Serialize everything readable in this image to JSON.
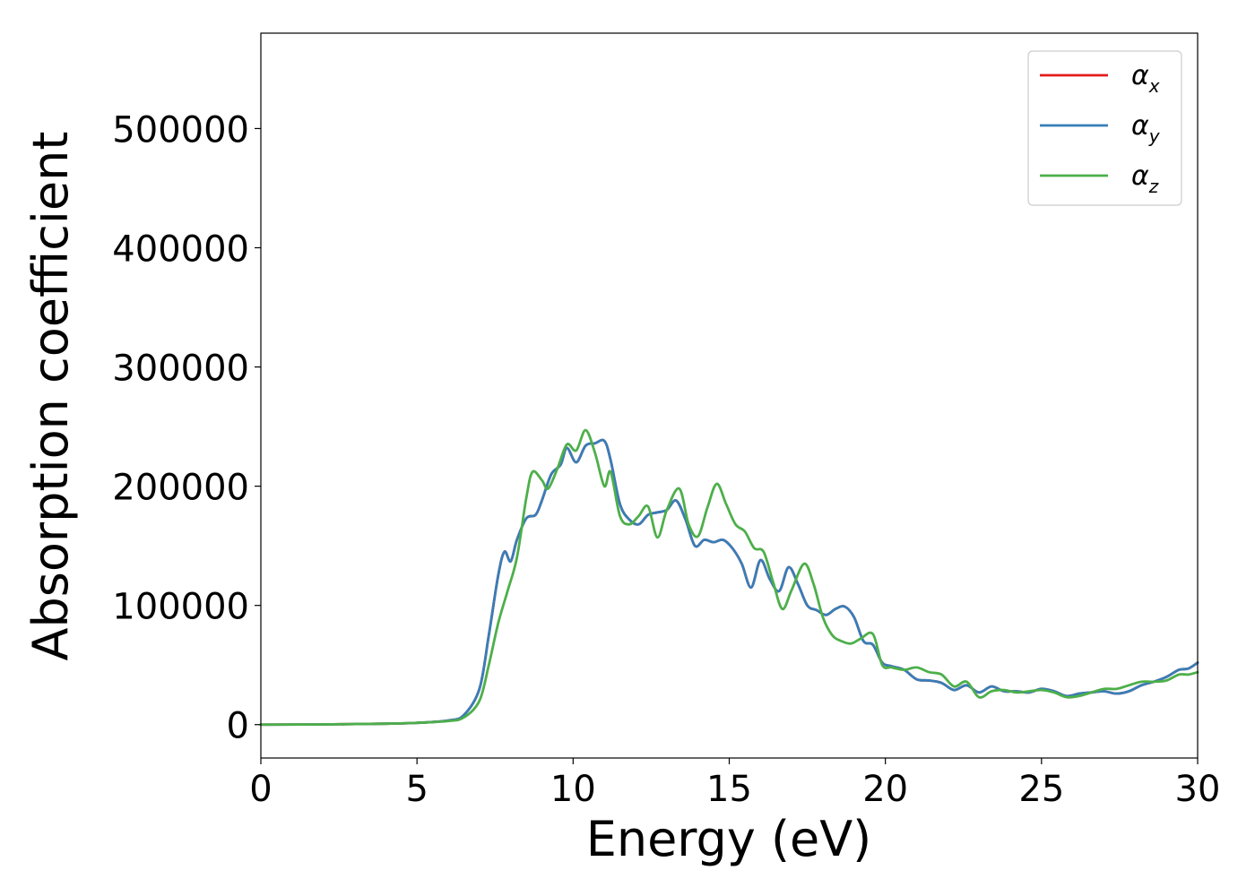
{
  "chart_data": {
    "type": "line",
    "xlabel": "Energy (eV)",
    "ylabel": "Absorption coefficient",
    "xlim": [
      0,
      30
    ],
    "ylim": [
      -28000,
      580000
    ],
    "x_ticks": [
      "0",
      "5",
      "10",
      "15",
      "20",
      "25",
      "30"
    ],
    "y_ticks": [
      "0",
      "100000",
      "200000",
      "300000",
      "400000",
      "500000"
    ],
    "grid": false,
    "legend_position": "top-right",
    "series": [
      {
        "name": "α_x",
        "label_base": "α",
        "label_sub": "x",
        "color": "#e41a1c",
        "x": [
          0,
          2,
          4,
          5,
          6,
          6.5,
          7,
          7.3,
          7.6,
          7.8,
          8.0,
          8.2,
          8.5,
          8.8,
          9.0,
          9.3,
          9.6,
          9.8,
          10.1,
          10.4,
          10.7,
          11.0,
          11.2,
          11.5,
          11.8,
          12.1,
          12.4,
          12.7,
          13.0,
          13.3,
          13.6,
          13.9,
          14.2,
          14.5,
          14.8,
          15.1,
          15.4,
          15.7,
          16.0,
          16.3,
          16.6,
          16.9,
          17.2,
          17.5,
          17.8,
          18.1,
          18.4,
          18.7,
          19.0,
          19.3,
          19.6,
          19.9,
          20.2,
          20.6,
          21.0,
          21.4,
          21.8,
          22.2,
          22.6,
          23.0,
          23.4,
          23.8,
          24.2,
          24.6,
          25.0,
          25.4,
          25.8,
          26.2,
          26.6,
          27.0,
          27.4,
          27.8,
          28.2,
          28.6,
          29.0,
          29.4,
          29.7,
          30.0
        ],
        "y": [
          0,
          200,
          800,
          1500,
          3500,
          8000,
          30000,
          75000,
          125000,
          145000,
          137000,
          155000,
          173000,
          176000,
          188000,
          210000,
          218000,
          232000,
          220000,
          234000,
          236000,
          238000,
          222000,
          185000,
          172000,
          168000,
          176000,
          178000,
          180000,
          188000,
          172000,
          150000,
          155000,
          153000,
          155000,
          148000,
          135000,
          115000,
          138000,
          122000,
          112000,
          132000,
          118000,
          100000,
          96000,
          92000,
          97000,
          99000,
          90000,
          70000,
          67000,
          52000,
          49000,
          46000,
          38000,
          37000,
          35000,
          29000,
          33000,
          27000,
          32000,
          28000,
          28000,
          27000,
          30000,
          28000,
          24000,
          26000,
          27000,
          28000,
          26000,
          28000,
          33000,
          36000,
          40000,
          46000,
          47000,
          52000
        ]
      },
      {
        "name": "α_y",
        "label_base": "α",
        "label_sub": "y",
        "color": "#377eb8",
        "x": [
          0,
          2,
          4,
          5,
          6,
          6.5,
          7,
          7.3,
          7.6,
          7.8,
          8.0,
          8.2,
          8.5,
          8.8,
          9.0,
          9.3,
          9.6,
          9.8,
          10.1,
          10.4,
          10.7,
          11.0,
          11.2,
          11.5,
          11.8,
          12.1,
          12.4,
          12.7,
          13.0,
          13.3,
          13.6,
          13.9,
          14.2,
          14.5,
          14.8,
          15.1,
          15.4,
          15.7,
          16.0,
          16.3,
          16.6,
          16.9,
          17.2,
          17.5,
          17.8,
          18.1,
          18.4,
          18.7,
          19.0,
          19.3,
          19.6,
          19.9,
          20.2,
          20.6,
          21.0,
          21.4,
          21.8,
          22.2,
          22.6,
          23.0,
          23.4,
          23.8,
          24.2,
          24.6,
          25.0,
          25.4,
          25.8,
          26.2,
          26.6,
          27.0,
          27.4,
          27.8,
          28.2,
          28.6,
          29.0,
          29.4,
          29.7,
          30.0
        ],
        "y": [
          0,
          200,
          800,
          1500,
          3500,
          8000,
          30000,
          75000,
          125000,
          145000,
          137000,
          155000,
          173000,
          176000,
          188000,
          210000,
          218000,
          232000,
          220000,
          234000,
          236000,
          238000,
          222000,
          185000,
          172000,
          168000,
          176000,
          178000,
          180000,
          188000,
          172000,
          150000,
          155000,
          153000,
          155000,
          148000,
          135000,
          115000,
          138000,
          122000,
          112000,
          132000,
          118000,
          100000,
          96000,
          92000,
          97000,
          99000,
          90000,
          70000,
          67000,
          52000,
          49000,
          46000,
          38000,
          37000,
          35000,
          29000,
          33000,
          27000,
          32000,
          28000,
          28000,
          27000,
          30000,
          28000,
          24000,
          26000,
          27000,
          28000,
          26000,
          28000,
          33000,
          36000,
          40000,
          46000,
          47000,
          52000
        ]
      },
      {
        "name": "α_z",
        "label_base": "α",
        "label_sub": "z",
        "color": "#4daf4a",
        "x": [
          0,
          2,
          4,
          5,
          6,
          6.5,
          7,
          7.3,
          7.6,
          7.9,
          8.2,
          8.5,
          8.7,
          9.0,
          9.2,
          9.5,
          9.8,
          10.1,
          10.4,
          10.7,
          11.0,
          11.2,
          11.5,
          11.8,
          12.1,
          12.4,
          12.7,
          13.0,
          13.4,
          13.7,
          14.0,
          14.3,
          14.6,
          14.9,
          15.2,
          15.5,
          15.8,
          16.1,
          16.4,
          16.7,
          17.0,
          17.4,
          17.7,
          18.0,
          18.3,
          18.6,
          18.9,
          19.2,
          19.6,
          19.9,
          20.2,
          20.6,
          21.0,
          21.4,
          21.8,
          22.2,
          22.6,
          23.0,
          23.4,
          23.8,
          24.2,
          24.6,
          25.0,
          25.4,
          25.8,
          26.2,
          26.6,
          27.0,
          27.4,
          27.8,
          28.2,
          28.6,
          29.0,
          29.4,
          29.7,
          30.0
        ],
        "y": [
          0,
          200,
          800,
          1500,
          3000,
          6000,
          20000,
          50000,
          85000,
          112000,
          140000,
          190000,
          212000,
          205000,
          198000,
          215000,
          235000,
          230000,
          247000,
          228000,
          200000,
          212000,
          175000,
          168000,
          175000,
          183000,
          157000,
          180000,
          198000,
          168000,
          158000,
          182000,
          202000,
          185000,
          168000,
          162000,
          148000,
          145000,
          120000,
          97000,
          113000,
          135000,
          118000,
          90000,
          75000,
          70000,
          68000,
          72000,
          76000,
          50000,
          48000,
          46000,
          48000,
          44000,
          42000,
          32000,
          36000,
          23000,
          28000,
          29000,
          27000,
          28000,
          29000,
          27000,
          23000,
          24000,
          27000,
          30000,
          30000,
          33000,
          36000,
          36000,
          37000,
          42000,
          42000,
          44000
        ]
      }
    ]
  }
}
